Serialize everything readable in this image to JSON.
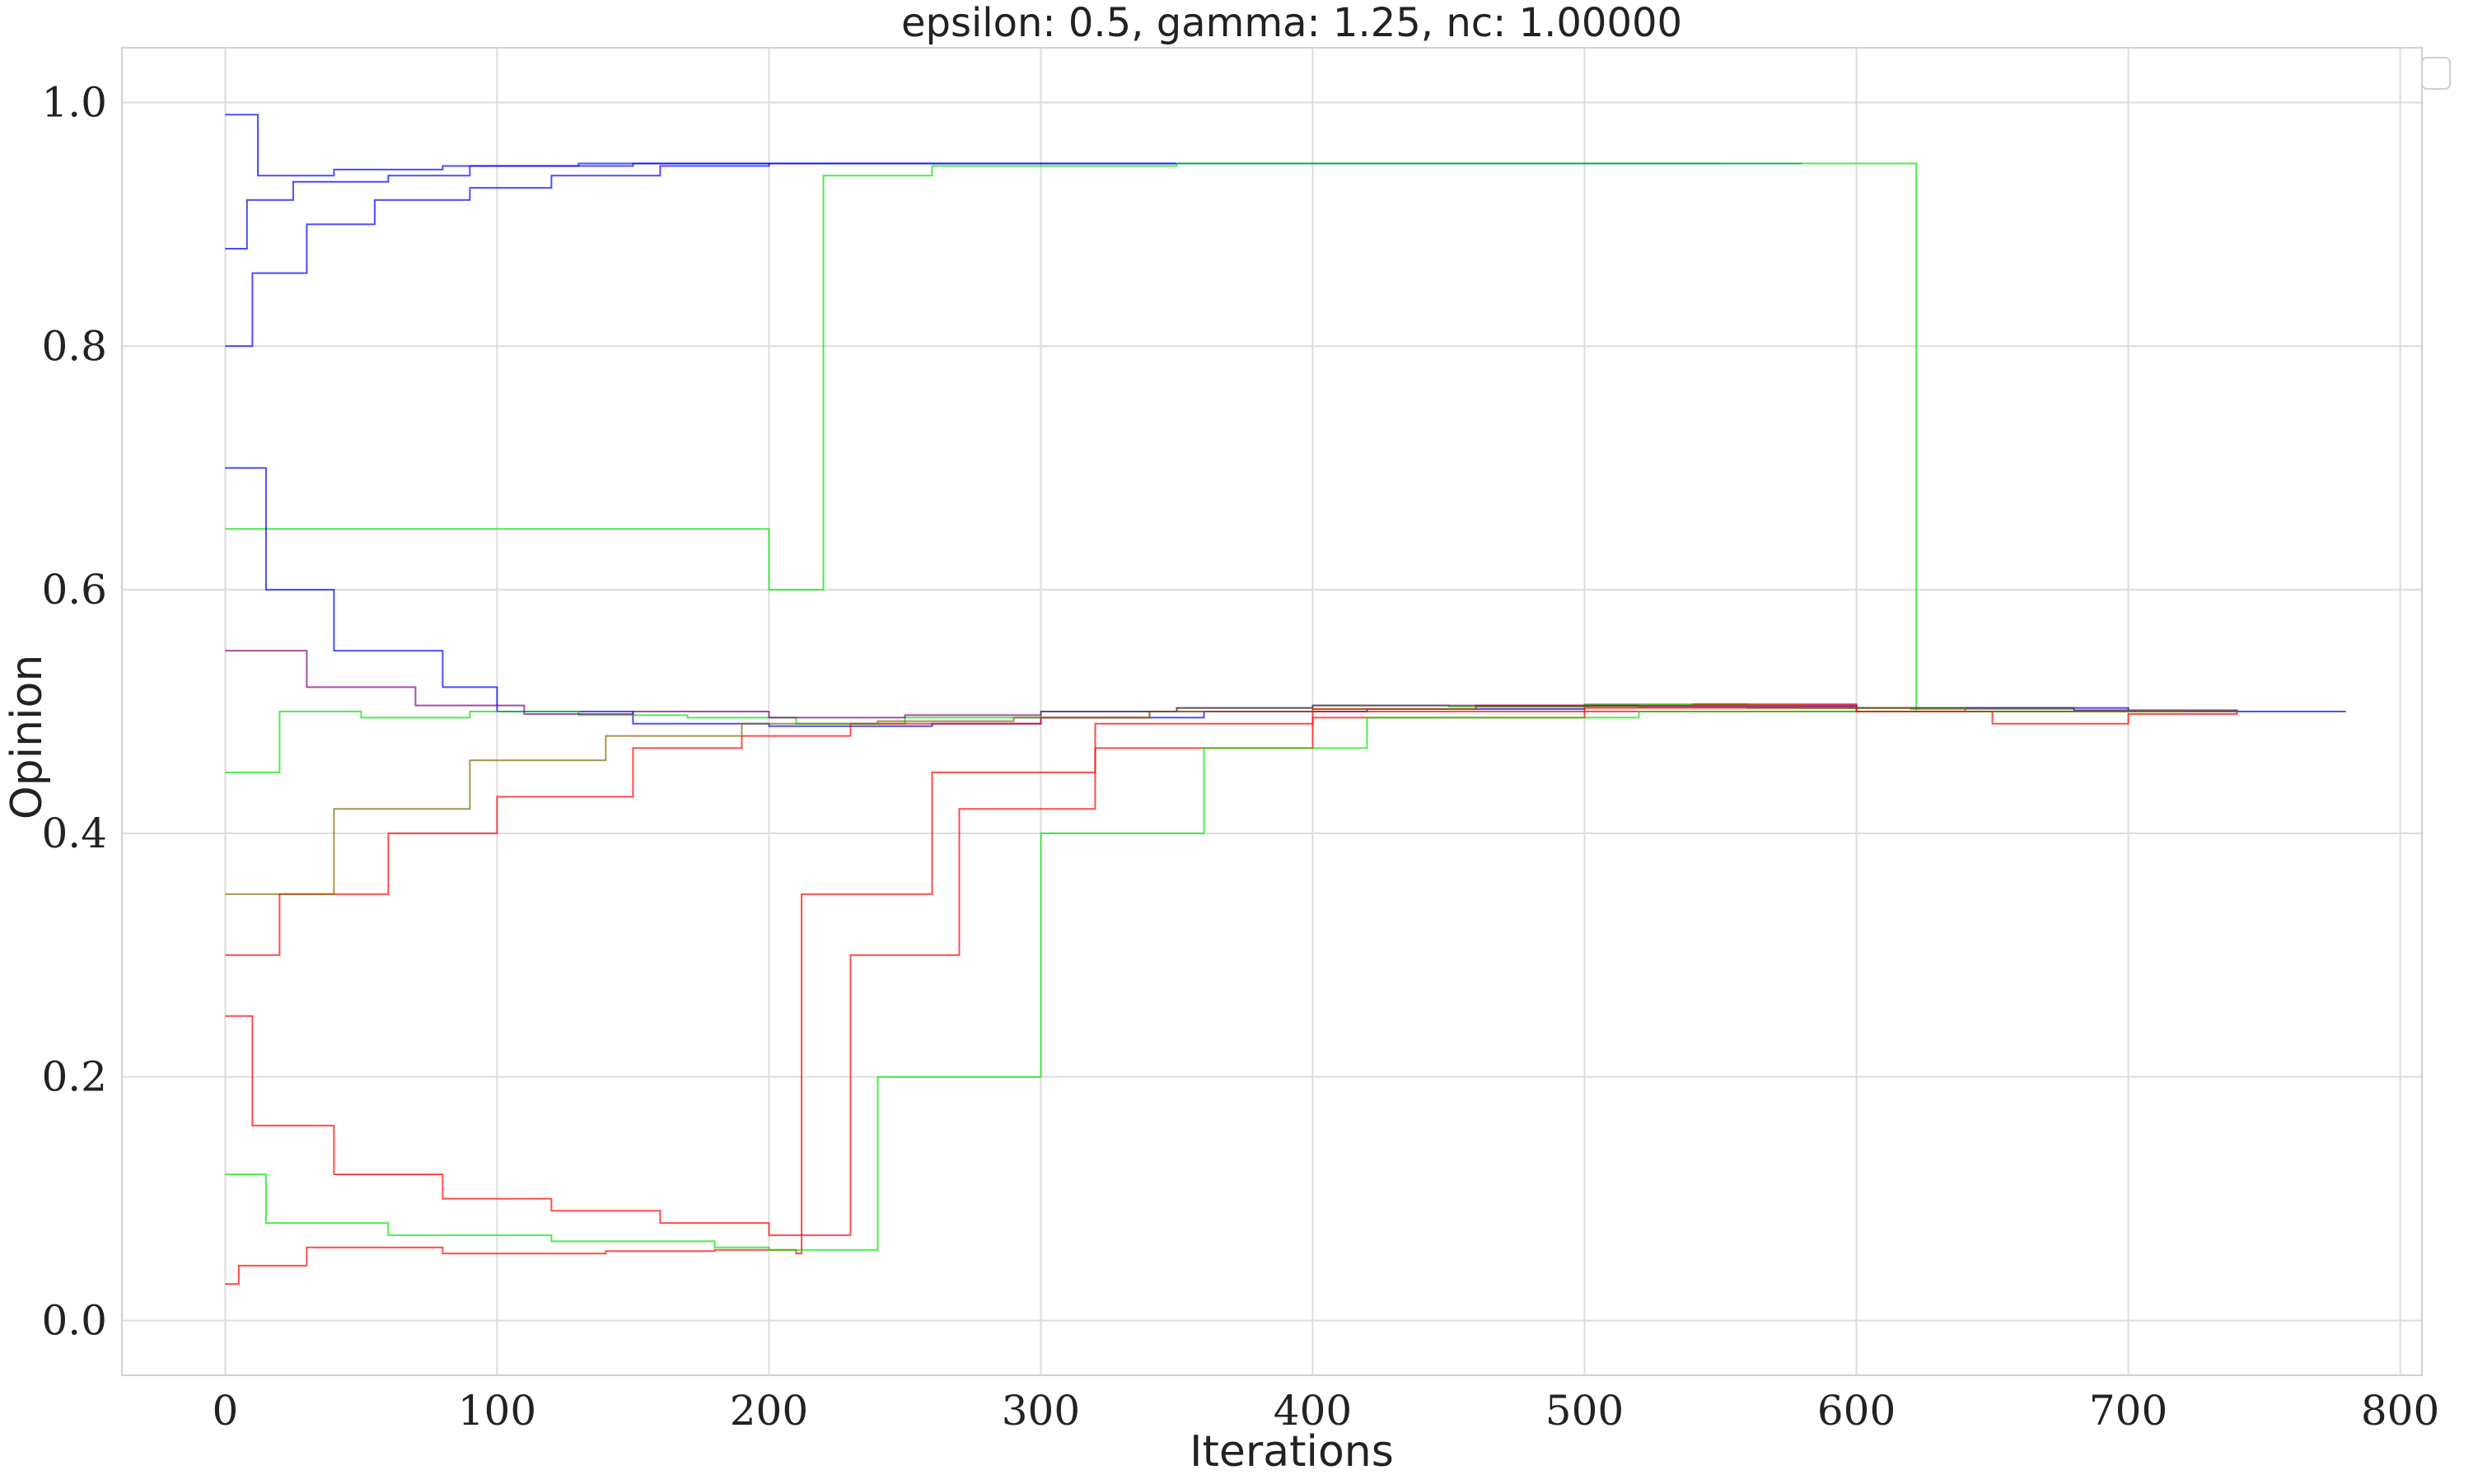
{
  "chart_data": {
    "type": "line",
    "title": "epsilon: 0.5, gamma: 1.25, nc: 1.00000",
    "xlabel": "Iterations",
    "ylabel": "Opinion",
    "xlim": [
      -38,
      808
    ],
    "ylim": [
      -0.045,
      1.045
    ],
    "xticks": [
      0,
      100,
      200,
      300,
      400,
      500,
      600,
      700,
      800
    ],
    "yticks": [
      0.0,
      0.2,
      0.4,
      0.6,
      0.8,
      1.0
    ],
    "xtick_labels": [
      "0",
      "100",
      "200",
      "300",
      "400",
      "500",
      "600",
      "700",
      "800"
    ],
    "ytick_labels": [
      "0.0",
      "0.2",
      "0.4",
      "0.6",
      "0.8",
      "1.0"
    ],
    "grid": true,
    "legend": "top-right (empty)",
    "converged_value": 0.5,
    "final_iteration": 780,
    "series_colors": {
      "blue": "#0000ff",
      "green": "#00e600",
      "red": "#ff0000",
      "purple": "#800080",
      "olive": "#7a6a00"
    },
    "series": [
      {
        "color": "blue",
        "x": [
          0,
          12,
          40,
          80,
          130,
          200,
          300,
          400,
          500,
          560,
          580
        ],
        "y": [
          0.99,
          0.94,
          0.945,
          0.948,
          0.95,
          0.95,
          0.95,
          0.95,
          0.95,
          0.95,
          0.95
        ]
      },
      {
        "color": "blue",
        "x": [
          0,
          8,
          25,
          60,
          90,
          150,
          250,
          350,
          450,
          550
        ],
        "y": [
          0.88,
          0.92,
          0.935,
          0.94,
          0.948,
          0.95,
          0.95,
          0.95,
          0.95,
          0.95
        ]
      },
      {
        "color": "blue",
        "x": [
          0,
          10,
          30,
          55,
          90,
          120,
          160,
          200
        ],
        "y": [
          0.8,
          0.86,
          0.9,
          0.92,
          0.93,
          0.94,
          0.948,
          0.95
        ]
      },
      {
        "color": "green",
        "x": [
          0,
          200,
          220,
          260,
          350,
          450,
          550,
          600,
          621,
          622
        ],
        "y": [
          0.65,
          0.6,
          0.94,
          0.948,
          0.95,
          0.95,
          0.95,
          0.95,
          0.95,
          0.5
        ]
      },
      {
        "color": "blue",
        "x": [
          0,
          15,
          40,
          80,
          100,
          150,
          200,
          260,
          300,
          360,
          420,
          500,
          600,
          700,
          780
        ],
        "y": [
          0.7,
          0.6,
          0.55,
          0.52,
          0.5,
          0.49,
          0.488,
          0.49,
          0.495,
          0.5,
          0.502,
          0.505,
          0.503,
          0.5,
          0.5
        ]
      },
      {
        "color": "green",
        "x": [
          0,
          20,
          50,
          90,
          130,
          170,
          210,
          250,
          300,
          350,
          400,
          450,
          500,
          560,
          620,
          680,
          740
        ],
        "y": [
          0.45,
          0.5,
          0.495,
          0.5,
          0.497,
          0.495,
          0.49,
          0.495,
          0.5,
          0.503,
          0.505,
          0.504,
          0.506,
          0.503,
          0.502,
          0.501,
          0.5
        ]
      },
      {
        "color": "red",
        "x": [
          0,
          5,
          30,
          80,
          140,
          180,
          210,
          212,
          260,
          320,
          400,
          500,
          600,
          720
        ],
        "y": [
          0.03,
          0.045,
          0.06,
          0.055,
          0.057,
          0.058,
          0.055,
          0.35,
          0.45,
          0.49,
          0.5,
          0.503,
          0.5,
          0.5
        ]
      },
      {
        "color": "red",
        "x": [
          0,
          10,
          40,
          80,
          120,
          160,
          200,
          230,
          270,
          320,
          400,
          500,
          620,
          720
        ],
        "y": [
          0.25,
          0.16,
          0.12,
          0.1,
          0.09,
          0.08,
          0.07,
          0.3,
          0.42,
          0.47,
          0.495,
          0.5,
          0.5,
          0.5
        ]
      },
      {
        "color": "green",
        "x": [
          0,
          15,
          60,
          120,
          180,
          200,
          240,
          300,
          360,
          420,
          520,
          620,
          720
        ],
        "y": [
          0.12,
          0.08,
          0.07,
          0.065,
          0.06,
          0.058,
          0.2,
          0.4,
          0.47,
          0.495,
          0.5,
          0.5,
          0.5
        ]
      },
      {
        "color": "red",
        "x": [
          0,
          20,
          60,
          100,
          150,
          190,
          230,
          260,
          300,
          340,
          400,
          460,
          540,
          600,
          650,
          700,
          740
        ],
        "y": [
          0.3,
          0.35,
          0.4,
          0.43,
          0.47,
          0.48,
          0.49,
          0.49,
          0.495,
          0.5,
          0.502,
          0.505,
          0.506,
          0.5,
          0.49,
          0.498,
          0.5
        ]
      },
      {
        "color": "purple",
        "x": [
          0,
          30,
          70,
          110,
          150,
          200,
          250,
          300,
          350,
          400,
          450,
          520,
          600,
          680,
          740
        ],
        "y": [
          0.55,
          0.52,
          0.505,
          0.498,
          0.5,
          0.495,
          0.497,
          0.5,
          0.503,
          0.505,
          0.505,
          0.504,
          0.503,
          0.501,
          0.5
        ]
      },
      {
        "color": "olive",
        "x": [
          0,
          40,
          90,
          140,
          190,
          240,
          290,
          340,
          400,
          460,
          520,
          580,
          640,
          700,
          740
        ],
        "y": [
          0.35,
          0.42,
          0.46,
          0.48,
          0.49,
          0.492,
          0.495,
          0.5,
          0.502,
          0.504,
          0.505,
          0.503,
          0.5,
          0.5,
          0.5
        ]
      }
    ]
  }
}
